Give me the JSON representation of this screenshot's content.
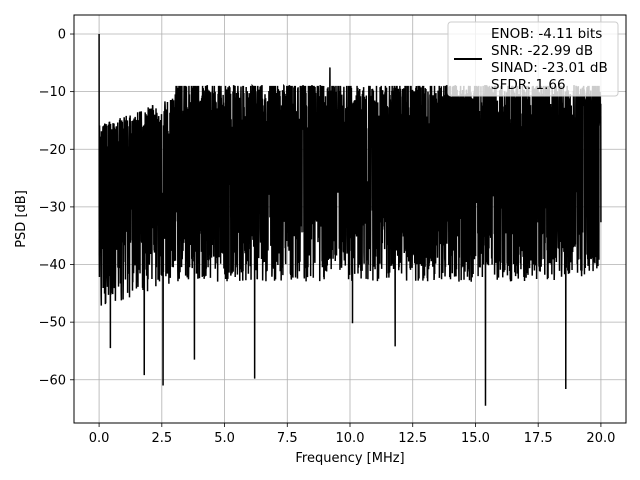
{
  "chart_data": {
    "type": "line",
    "title": "",
    "xlabel": "Frequency [MHz]",
    "ylabel": "PSD [dB]",
    "xlim": [
      -1.0,
      21.0
    ],
    "ylim": [
      -67.5,
      3.3
    ],
    "xticks": [
      0.0,
      2.5,
      5.0,
      7.5,
      10.0,
      12.5,
      15.0,
      17.5,
      20.0
    ],
    "xtick_labels": [
      "0.0",
      "2.5",
      "5.0",
      "7.5",
      "10.0",
      "12.5",
      "15.0",
      "17.5",
      "20.0"
    ],
    "yticks": [
      0,
      -10,
      -20,
      -30,
      -40,
      -50,
      -60
    ],
    "ytick_labels": [
      "0",
      "−10",
      "−20",
      "−30",
      "−40",
      "−50",
      "−60"
    ],
    "grid": true,
    "legend_position": "top-right",
    "line_color": "#000000",
    "series": [
      {
        "name": "ENOB: -4.11 bits",
        "legend_lines": [
          "ENOB: -4.11 bits",
          "SNR: -22.99 dB",
          "SINAD: -23.01 dB",
          "SFDR: 1.66"
        ],
        "frequency_range_mhz": [
          0.0,
          20.0
        ],
        "noise_floor_db": -23,
        "peak_points": [
          {
            "x": 0.0,
            "y": 0.0
          },
          {
            "x": 9.2,
            "y": -5.8
          },
          {
            "x": 0.45,
            "y": -54.5
          },
          {
            "x": 1.8,
            "y": -59.2
          },
          {
            "x": 2.55,
            "y": -61.0
          },
          {
            "x": 3.8,
            "y": -56.5
          },
          {
            "x": 6.2,
            "y": -59.8
          },
          {
            "x": 10.1,
            "y": -50.2
          },
          {
            "x": 11.8,
            "y": -54.2
          },
          {
            "x": 15.4,
            "y": -64.5
          },
          {
            "x": 18.6,
            "y": -61.6
          }
        ]
      }
    ]
  }
}
